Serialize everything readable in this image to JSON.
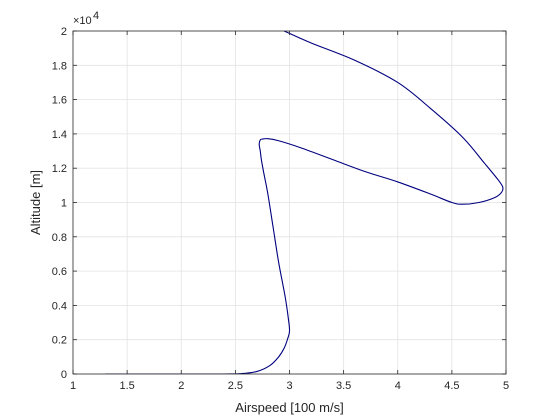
{
  "chart_data": {
    "type": "line",
    "title": "",
    "xlabel": "Airspeed [100 m/s]",
    "ylabel": "Altitude [m]",
    "y_exponent_label": "×10",
    "y_exponent_power": "4",
    "xlim": [
      1,
      5
    ],
    "ylim": [
      0,
      20000
    ],
    "x_ticks": [
      1,
      1.5,
      2,
      2.5,
      3,
      3.5,
      4,
      4.5,
      5
    ],
    "x_tick_labels": [
      "1",
      "1.5",
      "2",
      "2.5",
      "3",
      "3.5",
      "4",
      "4.5",
      "5"
    ],
    "y_ticks": [
      0,
      2000,
      4000,
      6000,
      8000,
      10000,
      12000,
      14000,
      16000,
      18000,
      20000
    ],
    "y_tick_labels": [
      "0",
      "0.2",
      "0.4",
      "0.6",
      "0.8",
      "1",
      "1.2",
      "1.4",
      "1.6",
      "1.8",
      "2"
    ],
    "grid": true,
    "legend": "none",
    "series": [
      {
        "color": "#00007f",
        "x": [
          1.3,
          2.0,
          2.4,
          2.55,
          2.7,
          2.82,
          2.9,
          2.95,
          2.98,
          3.0,
          2.99,
          2.96,
          2.9,
          2.85,
          2.8,
          2.76,
          2.74,
          2.73,
          2.72,
          2.73,
          2.75,
          2.8,
          2.9,
          3.1,
          3.4,
          3.7,
          4.0,
          4.3,
          4.5,
          4.6,
          4.75,
          4.9,
          4.96,
          4.97,
          4.93,
          4.8,
          4.6,
          4.3,
          4.0,
          3.6,
          3.2,
          2.95
        ],
        "y": [
          0,
          0,
          0,
          20,
          150,
          500,
          1000,
          1500,
          2000,
          2500,
          3200,
          4500,
          6500,
          8500,
          10500,
          11800,
          12500,
          13000,
          13400,
          13650,
          13700,
          13720,
          13600,
          13200,
          12500,
          11800,
          11200,
          10500,
          10000,
          9900,
          10000,
          10300,
          10600,
          10900,
          11300,
          12300,
          13800,
          15500,
          17000,
          18300,
          19300,
          20000
        ]
      }
    ]
  }
}
